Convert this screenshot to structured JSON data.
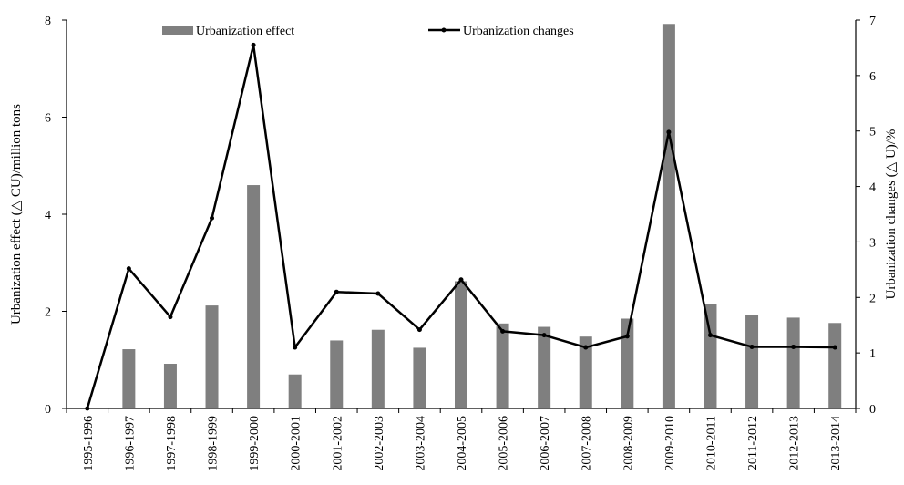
{
  "chart_data": {
    "type": "bar+line",
    "categories": [
      "1995-1996",
      "1996-1997",
      "1997-1998",
      "1998-1999",
      "1999-2000",
      "2000-2001",
      "2001-2002",
      "2002-2003",
      "2003-2004",
      "2004-2005",
      "2005-2006",
      "2006-2007",
      "2007-2008",
      "2008-2009",
      "2009-2010",
      "2010-2011",
      "2011-2012",
      "2012-2013",
      "2013-2014"
    ],
    "series": [
      {
        "name": "Urbanization effect",
        "kind": "bar",
        "axis": "left",
        "color": "#7f7f7f",
        "values": [
          0,
          1.22,
          0.92,
          2.12,
          4.6,
          0.7,
          1.4,
          1.62,
          1.25,
          2.62,
          1.75,
          1.68,
          1.48,
          1.85,
          7.92,
          2.15,
          1.92,
          1.87,
          1.76
        ]
      },
      {
        "name": "Urbanization changes",
        "kind": "line",
        "axis": "right",
        "color": "#000000",
        "values": [
          0,
          2.52,
          1.65,
          3.43,
          6.55,
          1.1,
          2.1,
          2.07,
          1.42,
          2.32,
          1.39,
          1.32,
          1.1,
          1.3,
          4.98,
          1.32,
          1.11,
          1.11,
          1.1
        ]
      }
    ],
    "ylabel": "Urbanization effect (△ CU)/million tons",
    "ylabel_right": "Urbanization changes (△ U)/%",
    "ylim": [
      0,
      8
    ],
    "yticks": [
      "0",
      "2",
      "4",
      "6",
      "8"
    ],
    "ylim_right": [
      0,
      7
    ],
    "yticks_right": [
      "0",
      "1",
      "2",
      "3",
      "4",
      "5",
      "6",
      "7"
    ],
    "legend_position": "top",
    "grid": false
  }
}
